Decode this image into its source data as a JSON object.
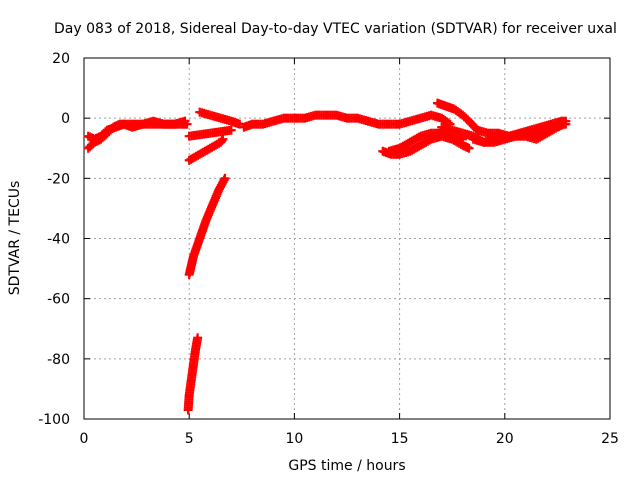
{
  "chart_data": {
    "type": "scatter",
    "title": "Day 083 of 2018, Sidereal Day-to-day VTEC variation (SDTVAR) for receiver uxal",
    "xlabel": "GPS time / hours",
    "ylabel": "SDTVAR / TECUs",
    "xlim": [
      0,
      25
    ],
    "ylim": [
      -100,
      20
    ],
    "x_ticks": [
      0,
      5,
      10,
      15,
      20,
      25
    ],
    "y_ticks": [
      -100,
      -80,
      -60,
      -40,
      -20,
      0,
      20
    ],
    "x_tick_labels": [
      "0",
      "5",
      "10",
      "15",
      "20",
      "25"
    ],
    "y_tick_labels": [
      "-100",
      "-80",
      "-60",
      "-40",
      "-20",
      "0",
      "20"
    ],
    "grid": true,
    "marker": "+",
    "series": [
      {
        "name": "sdtvar",
        "color": "#ff0000",
        "tracks": [
          [
            [
              0.2,
              -10
            ],
            [
              0.5,
              -8
            ],
            [
              0.8,
              -7
            ],
            [
              1.1,
              -5
            ],
            [
              1.4,
              -3
            ],
            [
              1.7,
              -2
            ],
            [
              2.0,
              -2
            ],
            [
              2.3,
              -2
            ],
            [
              2.6,
              -2
            ],
            [
              3.0,
              -2
            ],
            [
              3.5,
              -2
            ],
            [
              4.0,
              -2
            ],
            [
              4.5,
              -2
            ],
            [
              4.9,
              -2
            ]
          ],
          [
            [
              0.2,
              -6
            ],
            [
              0.5,
              -7
            ],
            [
              0.8,
              -6
            ],
            [
              1.1,
              -4
            ],
            [
              1.5,
              -3
            ],
            [
              1.9,
              -2
            ],
            [
              2.3,
              -3
            ],
            [
              2.8,
              -2
            ],
            [
              3.3,
              -1
            ],
            [
              3.8,
              -2
            ],
            [
              4.3,
              -2
            ],
            [
              4.8,
              -1
            ]
          ],
          [
            [
              5.0,
              -6
            ],
            [
              5.5,
              -5.5
            ],
            [
              6.0,
              -5
            ],
            [
              6.5,
              -4.5
            ],
            [
              7.0,
              -4
            ]
          ],
          [
            [
              5.5,
              2
            ],
            [
              6.0,
              1
            ],
            [
              6.5,
              0
            ],
            [
              7.0,
              -1
            ],
            [
              7.4,
              -2
            ]
          ],
          [
            [
              5.0,
              -14
            ],
            [
              5.5,
              -12
            ],
            [
              6.0,
              -10
            ],
            [
              6.5,
              -8
            ],
            [
              6.6,
              -7
            ]
          ],
          [
            [
              5.0,
              -52
            ],
            [
              5.2,
              -46
            ],
            [
              5.5,
              -40
            ],
            [
              5.8,
              -34
            ],
            [
              6.1,
              -29
            ],
            [
              6.4,
              -24
            ],
            [
              6.7,
              -20
            ]
          ],
          [
            [
              4.95,
              -97
            ],
            [
              5.0,
              -92
            ],
            [
              5.1,
              -87
            ],
            [
              5.2,
              -82
            ],
            [
              5.3,
              -77
            ],
            [
              5.4,
              -73
            ]
          ],
          [
            [
              7.6,
              -3
            ],
            [
              8.0,
              -2
            ],
            [
              8.5,
              -2
            ],
            [
              9.0,
              -1
            ],
            [
              9.5,
              0
            ],
            [
              10.0,
              0
            ],
            [
              10.5,
              0
            ],
            [
              11.0,
              1
            ],
            [
              11.5,
              1
            ],
            [
              12.0,
              1
            ],
            [
              12.5,
              0
            ],
            [
              13.0,
              0
            ],
            [
              13.5,
              -1
            ],
            [
              14.0,
              -2
            ],
            [
              14.5,
              -2
            ],
            [
              15.0,
              -2
            ],
            [
              15.5,
              -1
            ],
            [
              16.0,
              0
            ],
            [
              16.5,
              1
            ],
            [
              17.0,
              0
            ],
            [
              17.4,
              -2
            ]
          ],
          [
            [
              14.2,
              -11
            ],
            [
              14.6,
              -12
            ],
            [
              15.0,
              -12
            ],
            [
              15.5,
              -11
            ],
            [
              16.0,
              -9
            ],
            [
              16.5,
              -7
            ],
            [
              17.0,
              -6
            ],
            [
              17.5,
              -7
            ],
            [
              18.0,
              -9
            ],
            [
              18.3,
              -10
            ]
          ],
          [
            [
              14.5,
              -11
            ],
            [
              15.0,
              -10
            ],
            [
              15.5,
              -8
            ],
            [
              16.0,
              -6
            ],
            [
              16.5,
              -5
            ],
            [
              17.0,
              -5
            ],
            [
              17.5,
              -6
            ],
            [
              18.0,
              -7
            ]
          ],
          [
            [
              16.8,
              5
            ],
            [
              17.2,
              4
            ],
            [
              17.6,
              3
            ],
            [
              18.0,
              1
            ],
            [
              18.3,
              -1
            ],
            [
              18.7,
              -4
            ],
            [
              19.2,
              -5
            ],
            [
              19.7,
              -5
            ],
            [
              20.2,
              -6
            ],
            [
              20.7,
              -5
            ],
            [
              21.2,
              -4
            ],
            [
              21.7,
              -3
            ],
            [
              22.2,
              -2
            ],
            [
              22.7,
              -1
            ],
            [
              22.9,
              -1
            ]
          ],
          [
            [
              17.0,
              -3
            ],
            [
              17.5,
              -4
            ],
            [
              18.0,
              -5
            ],
            [
              18.5,
              -6
            ],
            [
              19.0,
              -8
            ],
            [
              19.5,
              -7
            ],
            [
              20.0,
              -6
            ],
            [
              20.5,
              -6
            ],
            [
              21.0,
              -5
            ],
            [
              21.5,
              -5
            ],
            [
              22.0,
              -4
            ],
            [
              22.5,
              -2
            ],
            [
              22.9,
              -2
            ]
          ],
          [
            [
              18.5,
              -7
            ],
            [
              19.0,
              -8
            ],
            [
              19.5,
              -8
            ],
            [
              20.0,
              -7
            ],
            [
              20.5,
              -6
            ],
            [
              21.0,
              -6
            ],
            [
              21.5,
              -7
            ],
            [
              22.0,
              -5
            ],
            [
              22.5,
              -3
            ],
            [
              22.8,
              -2
            ]
          ]
        ]
      }
    ]
  }
}
